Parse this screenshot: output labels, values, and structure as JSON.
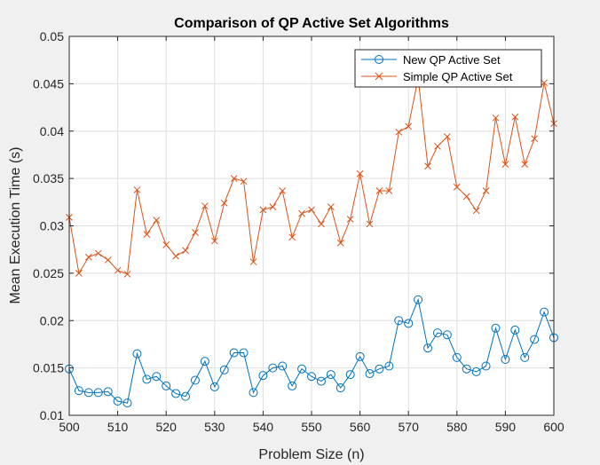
{
  "chart_data": {
    "type": "line",
    "title": "Comparison of QP Active Set Algorithms",
    "xlabel": "Problem Size (n)",
    "ylabel": "Mean Execution Time (s)",
    "xlim": [
      500,
      600
    ],
    "ylim": [
      0.01,
      0.05
    ],
    "xticks": [
      500,
      510,
      520,
      530,
      540,
      550,
      560,
      570,
      580,
      590,
      600
    ],
    "yticks": [
      0.01,
      0.015,
      0.02,
      0.025,
      0.03,
      0.035,
      0.04,
      0.045,
      0.05
    ],
    "xtick_labels": [
      "500",
      "510",
      "520",
      "530",
      "540",
      "550",
      "560",
      "570",
      "580",
      "590",
      "600"
    ],
    "ytick_labels": [
      "0.01",
      "0.015",
      "0.02",
      "0.025",
      "0.03",
      "0.035",
      "0.04",
      "0.045",
      "0.05"
    ],
    "grid": true,
    "legend_position": "top-right",
    "x": [
      500,
      502,
      504,
      506,
      508,
      510,
      512,
      514,
      516,
      518,
      520,
      522,
      524,
      526,
      528,
      530,
      532,
      534,
      536,
      538,
      540,
      542,
      544,
      546,
      548,
      550,
      552,
      554,
      556,
      558,
      560,
      562,
      564,
      566,
      568,
      570,
      572,
      574,
      576,
      578,
      580,
      582,
      584,
      586,
      588,
      590,
      592,
      594,
      596,
      598,
      600
    ],
    "series": [
      {
        "name": "New QP Active Set",
        "color": "#0072BD",
        "marker": "circle",
        "values": [
          0.0149,
          0.0126,
          0.0124,
          0.0124,
          0.0125,
          0.0115,
          0.0113,
          0.0165,
          0.0138,
          0.0141,
          0.0131,
          0.0123,
          0.012,
          0.0137,
          0.0157,
          0.013,
          0.0148,
          0.0166,
          0.0166,
          0.0124,
          0.0142,
          0.015,
          0.0152,
          0.0131,
          0.0149,
          0.0141,
          0.0136,
          0.0143,
          0.0129,
          0.0143,
          0.0162,
          0.0144,
          0.0149,
          0.0152,
          0.02,
          0.0197,
          0.0222,
          0.0171,
          0.0187,
          0.0185,
          0.0161,
          0.0149,
          0.0146,
          0.0152,
          0.0192,
          0.0159,
          0.019,
          0.0161,
          0.018,
          0.0209,
          0.0182
        ]
      },
      {
        "name": "Simple QP Active Set",
        "color": "#D95319",
        "marker": "x",
        "values": [
          0.0309,
          0.025,
          0.0267,
          0.0271,
          0.0264,
          0.0253,
          0.0249,
          0.0338,
          0.0291,
          0.0306,
          0.028,
          0.0268,
          0.0274,
          0.0293,
          0.0321,
          0.0284,
          0.0324,
          0.035,
          0.0347,
          0.0262,
          0.0317,
          0.032,
          0.0337,
          0.0288,
          0.0313,
          0.0317,
          0.0302,
          0.032,
          0.0282,
          0.0307,
          0.0355,
          0.0302,
          0.0337,
          0.0337,
          0.0399,
          0.0405,
          0.0456,
          0.0363,
          0.0384,
          0.0394,
          0.0341,
          0.0331,
          0.0316,
          0.0337,
          0.0414,
          0.0365,
          0.0415,
          0.0365,
          0.0392,
          0.0451,
          0.0408
        ]
      }
    ]
  }
}
